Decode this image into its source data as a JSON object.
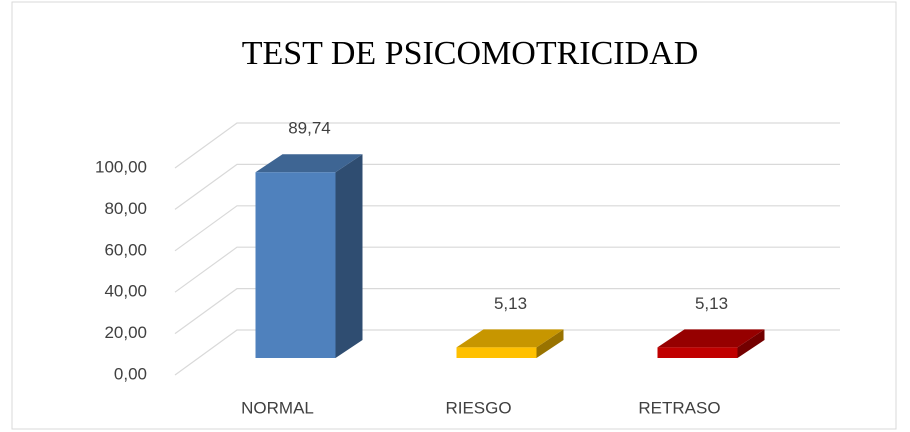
{
  "chart_data": {
    "type": "bar3d",
    "title": "TEST DE PSICOMOTRICIDAD",
    "categories": [
      "NORMAL",
      "RIESGO",
      "RETRASO"
    ],
    "values": [
      89.74,
      5.13,
      5.13
    ],
    "value_labels": [
      "89,74",
      "5,13",
      "5,13"
    ],
    "colors": [
      "#4f81bd",
      "#ffc000",
      "#c00000"
    ],
    "ylim": [
      0,
      120
    ],
    "yticks": [
      {
        "value": 0,
        "label": "0,00"
      },
      {
        "value": 20,
        "label": "20,00"
      },
      {
        "value": 40,
        "label": "40,00"
      },
      {
        "value": 60,
        "label": "60,00"
      },
      {
        "value": 80,
        "label": "80,00"
      },
      {
        "value": 100,
        "label": "100,00"
      }
    ],
    "grid": true
  }
}
